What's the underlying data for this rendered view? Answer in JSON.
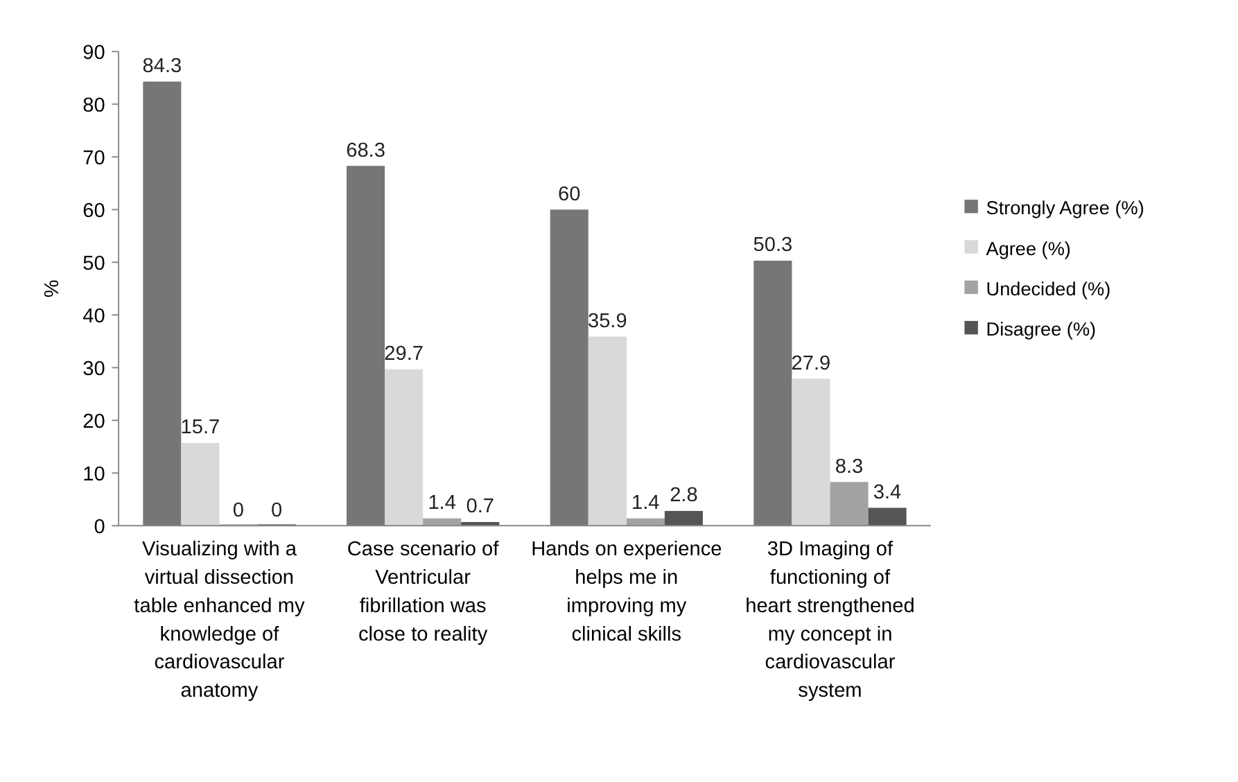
{
  "chart_data": {
    "type": "bar",
    "ylabel": "%",
    "categories": [
      "Visualizing  with a virtual dissection table enhanced my knowledge of cardiovascular anatomy",
      "Case scenario of Ventricular fibrillation was close to reality",
      "Hands on experience helps me in improving my clinical skills",
      "3D Imaging of functioning of heart strengthened my concept in cardiovascular system"
    ],
    "series": [
      {
        "name": "Strongly Agree (%)",
        "color": "#767676",
        "values": [
          84.3,
          68.3,
          60,
          50.3
        ]
      },
      {
        "name": "Agree (%)",
        "color": "#d9d9d9",
        "values": [
          15.7,
          29.7,
          35.9,
          27.9
        ]
      },
      {
        "name": "Undecided (%)",
        "color": "#a3a3a3",
        "values": [
          0,
          1.4,
          1.4,
          8.3
        ]
      },
      {
        "name": "Disagree  (%)",
        "color": "#555555",
        "values": [
          0,
          0.7,
          2.8,
          3.4
        ]
      }
    ],
    "ylim": [
      0,
      90
    ],
    "yticks": [
      0,
      10,
      20,
      30,
      40,
      50,
      60,
      70,
      80,
      90
    ],
    "grid": false,
    "legend": "right",
    "data_labels": true
  }
}
